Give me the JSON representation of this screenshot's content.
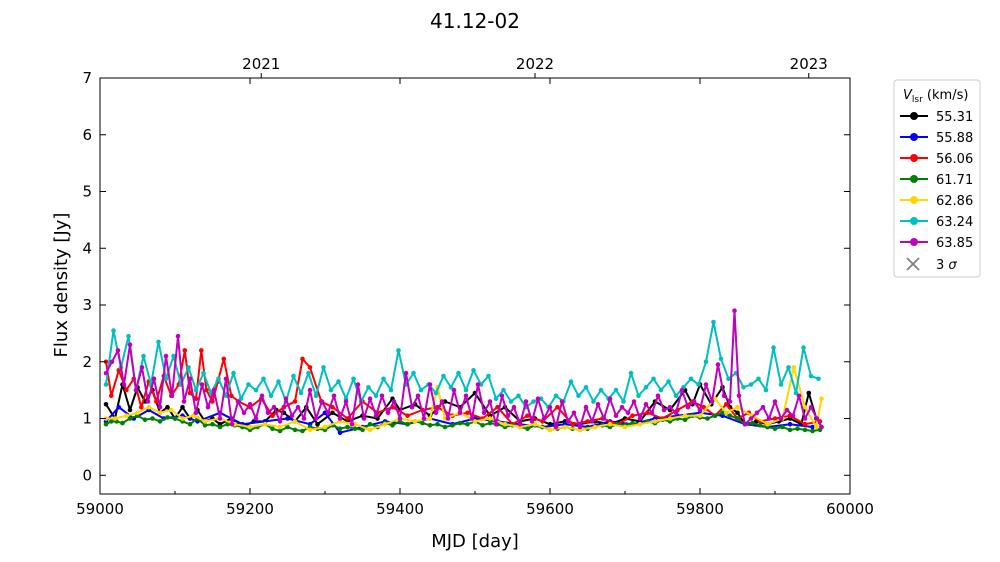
{
  "chart_data": {
    "type": "line",
    "title": "41.12-02",
    "xlabel": "MJD [day]",
    "ylabel": "Flux density [Jy]",
    "xlim": [
      59000,
      60000
    ],
    "ylim": [
      -0.33,
      7.0
    ],
    "x_ticks": [
      59000,
      59200,
      59400,
      59600,
      59800,
      60000
    ],
    "x_tick_labels": [
      "59000",
      "59200",
      "59400",
      "59600",
      "59800",
      "60000"
    ],
    "y_ticks": [
      0,
      1,
      2,
      3,
      4,
      5,
      6,
      7
    ],
    "y_tick_labels": [
      "0",
      "1",
      "2",
      "3",
      "4",
      "5",
      "6",
      "7"
    ],
    "top_axis": {
      "ticks": [
        59215,
        59580,
        59945
      ],
      "labels": [
        "2021",
        "2022",
        "2023"
      ]
    },
    "legend": {
      "title_main": "V",
      "title_sub": "lsr",
      "title_unit": " (km/s)",
      "placement": "outside-right",
      "entries": [
        {
          "label": "55.31",
          "color": "#000000"
        },
        {
          "label": "55.88",
          "color": "#0000ff"
        },
        {
          "label": "56.06",
          "color": "#ff0000"
        },
        {
          "label": "61.71",
          "color": "#008000"
        },
        {
          "label": "62.86",
          "color": "#ffd700"
        },
        {
          "label": "63.24",
          "color": "#00bfbf"
        },
        {
          "label": "63.85",
          "color": "#bf00bf"
        }
      ],
      "sigma_entry": {
        "label_main": "3 ",
        "label_sym": "σ",
        "color": "#808080"
      }
    },
    "series": [
      {
        "name": "55.31",
        "color": "#000000",
        "x": [
          59008,
          59020,
          59030,
          59040,
          59050,
          59060,
          59070,
          59080,
          59090,
          59100,
          59110,
          59120,
          59130,
          59140,
          59150,
          59160,
          59175,
          59190,
          59205,
          59220,
          59235,
          59245,
          59260,
          59275,
          59290,
          59310,
          59330,
          59350,
          59370,
          59390,
          59400,
          59420,
          59440,
          59460,
          59480,
          59500,
          59520,
          59540,
          59560,
          59580,
          59600,
          59620,
          59640,
          59660,
          59680,
          59700,
          59720,
          59740,
          59760,
          59780,
          59790,
          59800,
          59815,
          59830,
          59840,
          59850,
          59860,
          59875,
          59890,
          59905,
          59920,
          59935,
          59945,
          59955,
          59962
        ],
        "y": [
          1.25,
          1.0,
          1.6,
          1.15,
          1.55,
          1.3,
          1.5,
          1.1,
          1.2,
          1.0,
          1.2,
          1.0,
          1.15,
          0.95,
          1.0,
          0.9,
          1.0,
          0.85,
          0.95,
          0.95,
          1.15,
          1.1,
          0.95,
          1.2,
          0.9,
          1.1,
          0.95,
          1.05,
          1.0,
          1.35,
          1.15,
          1.25,
          1.05,
          1.3,
          1.2,
          1.45,
          1.05,
          1.2,
          0.95,
          1.0,
          0.9,
          0.95,
          0.9,
          0.95,
          0.9,
          1.0,
          0.95,
          1.3,
          1.15,
          1.5,
          1.25,
          1.6,
          1.25,
          1.55,
          1.2,
          1.1,
          0.9,
          0.95,
          0.9,
          0.95,
          1.0,
          0.9,
          1.45,
          1.0,
          0.85
        ]
      },
      {
        "name": "55.88",
        "color": "#0000ff",
        "x": [
          59008,
          59025,
          59045,
          59065,
          59085,
          59110,
          59130,
          59160,
          59190,
          59220,
          59250,
          59280,
          59300,
          59320,
          59350,
          59380,
          59410,
          59440,
          59470,
          59500,
          59530,
          59560,
          59590,
          59620,
          59650,
          59680,
          59710,
          59740,
          59770,
          59800,
          59830,
          59860,
          59890,
          59920,
          59950
        ],
        "y": [
          0.95,
          1.2,
          1.0,
          1.15,
          1.0,
          1.05,
          0.95,
          1.1,
          0.9,
          0.95,
          1.0,
          0.9,
          1.1,
          0.75,
          0.85,
          0.95,
          0.9,
          1.0,
          0.9,
          1.0,
          0.95,
          0.9,
          0.85,
          0.9,
          0.85,
          0.95,
          0.9,
          1.0,
          1.05,
          1.1,
          1.05,
          0.9,
          0.85,
          0.9,
          0.85
        ]
      },
      {
        "name": "56.06",
        "color": "#ff0000",
        "x": [
          59008,
          59015,
          59025,
          59035,
          59045,
          59055,
          59065,
          59075,
          59085,
          59095,
          59105,
          59113,
          59120,
          59128,
          59135,
          59142,
          59150,
          59157,
          59165,
          59175,
          59185,
          59200,
          59215,
          59230,
          59245,
          59260,
          59270,
          59280,
          59295,
          59310,
          59330,
          59350,
          59370,
          59390,
          59410,
          59430,
          59450,
          59470,
          59490,
          59510,
          59530,
          59550,
          59570,
          59590,
          59610,
          59630,
          59650,
          59670,
          59690,
          59710,
          59730,
          59750,
          59770,
          59790,
          59805,
          59820,
          59835,
          59850,
          59865,
          59880,
          59900,
          59920,
          59940,
          59960
        ],
        "y": [
          2.0,
          1.4,
          1.85,
          1.5,
          1.7,
          1.2,
          1.65,
          1.3,
          1.75,
          1.4,
          1.6,
          2.2,
          1.45,
          1.35,
          2.2,
          1.5,
          1.3,
          1.65,
          2.05,
          1.4,
          1.3,
          1.2,
          1.35,
          1.05,
          1.2,
          1.3,
          2.05,
          1.9,
          1.3,
          1.2,
          1.0,
          1.3,
          1.1,
          1.2,
          1.05,
          1.15,
          1.2,
          1.05,
          1.1,
          1.0,
          1.2,
          0.9,
          1.05,
          0.95,
          1.2,
          0.9,
          0.95,
          1.0,
          0.9,
          1.05,
          1.1,
          1.0,
          1.15,
          1.3,
          1.2,
          1.05,
          1.25,
          1.0,
          1.1,
          0.95,
          1.0,
          1.05,
          0.9,
          0.95
        ]
      },
      {
        "name": "61.71",
        "color": "#008000",
        "x": [
          59008,
          59015,
          59022,
          59030,
          59040,
          59050,
          59060,
          59070,
          59080,
          59090,
          59100,
          59110,
          59120,
          59130,
          59140,
          59150,
          59160,
          59170,
          59180,
          59190,
          59200,
          59210,
          59220,
          59230,
          59240,
          59250,
          59260,
          59270,
          59280,
          59290,
          59300,
          59310,
          59320,
          59330,
          59340,
          59350,
          59360,
          59370,
          59380,
          59390,
          59400,
          59410,
          59420,
          59430,
          59440,
          59450,
          59460,
          59470,
          59480,
          59490,
          59500,
          59510,
          59520,
          59530,
          59540,
          59550,
          59560,
          59570,
          59580,
          59590,
          59600,
          59610,
          59620,
          59630,
          59640,
          59650,
          59660,
          59670,
          59680,
          59690,
          59700,
          59710,
          59720,
          59730,
          59740,
          59750,
          59760,
          59770,
          59780,
          59790,
          59800,
          59810,
          59820,
          59830,
          59840,
          59850,
          59860,
          59870,
          59880,
          59890,
          59900,
          59910,
          59920,
          59930,
          59940,
          59950,
          59960
        ],
        "y": [
          0.9,
          0.95,
          0.95,
          0.92,
          1.0,
          1.05,
          0.98,
          1.0,
          0.95,
          1.02,
          1.0,
          0.95,
          0.9,
          1.0,
          0.88,
          0.9,
          0.85,
          0.9,
          0.88,
          0.85,
          0.8,
          0.85,
          0.9,
          0.82,
          0.78,
          0.85,
          0.8,
          0.78,
          0.85,
          0.82,
          0.8,
          0.88,
          0.82,
          0.85,
          0.82,
          0.8,
          0.9,
          0.85,
          0.92,
          0.88,
          0.95,
          0.9,
          0.95,
          0.92,
          0.88,
          0.9,
          0.85,
          0.88,
          0.92,
          0.9,
          0.95,
          0.88,
          0.92,
          0.9,
          0.85,
          0.88,
          0.85,
          0.82,
          0.88,
          0.85,
          0.8,
          0.82,
          0.85,
          0.82,
          0.8,
          0.82,
          0.85,
          0.88,
          0.85,
          0.9,
          0.88,
          0.92,
          0.9,
          0.95,
          0.92,
          0.98,
          0.95,
          1.0,
          0.98,
          1.05,
          1.02,
          1.0,
          1.05,
          1.1,
          1.05,
          1.0,
          0.9,
          0.92,
          0.88,
          0.85,
          0.82,
          0.85,
          0.8,
          0.82,
          0.8,
          0.78,
          0.8
        ]
      },
      {
        "name": "62.86",
        "color": "#ffd700",
        "x": [
          59008,
          59020,
          59035,
          59050,
          59065,
          59080,
          59095,
          59110,
          59125,
          59140,
          59160,
          59180,
          59200,
          59220,
          59240,
          59260,
          59280,
          59300,
          59320,
          59340,
          59360,
          59380,
          59400,
          59420,
          59440,
          59450,
          59460,
          59480,
          59500,
          59520,
          59540,
          59560,
          59580,
          59600,
          59620,
          59640,
          59660,
          59680,
          59700,
          59720,
          59740,
          59760,
          59780,
          59800,
          59820,
          59835,
          59850,
          59870,
          59890,
          59910,
          59925,
          59940,
          59955,
          59962
        ],
        "y": [
          1.0,
          1.0,
          1.05,
          1.1,
          1.2,
          1.1,
          1.15,
          1.0,
          1.05,
          0.95,
          1.0,
          0.9,
          0.85,
          0.9,
          0.85,
          0.95,
          0.8,
          0.85,
          0.95,
          0.9,
          0.8,
          0.9,
          1.0,
          0.95,
          1.0,
          1.55,
          1.0,
          1.1,
          0.95,
          1.0,
          0.9,
          0.85,
          0.9,
          0.8,
          0.85,
          0.8,
          0.85,
          0.9,
          0.85,
          0.9,
          0.95,
          1.0,
          1.05,
          1.05,
          1.35,
          1.1,
          1.2,
          1.05,
          0.9,
          1.0,
          1.9,
          1.2,
          0.85,
          1.35
        ]
      },
      {
        "name": "63.24",
        "color": "#00bfbf",
        "x": [
          59008,
          59018,
          59028,
          59038,
          59048,
          59058,
          59068,
          59078,
          59088,
          59098,
          59108,
          59118,
          59128,
          59138,
          59148,
          59158,
          59168,
          59178,
          59188,
          59198,
          59208,
          59218,
          59228,
          59238,
          59248,
          59258,
          59268,
          59278,
          59288,
          59298,
          59308,
          59318,
          59328,
          59338,
          59348,
          59358,
          59368,
          59378,
          59388,
          59398,
          59408,
          59418,
          59428,
          59438,
          59448,
          59458,
          59468,
          59478,
          59488,
          59498,
          59508,
          59518,
          59528,
          59538,
          59548,
          59558,
          59568,
          59578,
          59588,
          59598,
          59608,
          59618,
          59628,
          59638,
          59648,
          59658,
          59668,
          59678,
          59688,
          59698,
          59708,
          59718,
          59728,
          59738,
          59748,
          59758,
          59768,
          59778,
          59788,
          59798,
          59808,
          59818,
          59828,
          59838,
          59848,
          59858,
          59868,
          59878,
          59888,
          59898,
          59908,
          59918,
          59928,
          59938,
          59948,
          59958
        ],
        "y": [
          1.6,
          2.55,
          1.9,
          2.45,
          1.5,
          2.1,
          1.6,
          2.35,
          1.7,
          2.1,
          1.6,
          1.9,
          1.5,
          1.8,
          1.45,
          1.7,
          1.4,
          1.8,
          1.35,
          1.6,
          1.5,
          1.7,
          1.4,
          1.65,
          1.3,
          1.75,
          1.45,
          1.8,
          1.4,
          1.9,
          1.5,
          1.65,
          1.35,
          1.7,
          1.3,
          1.55,
          1.4,
          1.7,
          1.5,
          2.2,
          1.6,
          1.8,
          1.5,
          1.6,
          1.45,
          1.75,
          1.55,
          1.8,
          1.5,
          1.85,
          1.6,
          1.75,
          1.35,
          1.5,
          1.3,
          1.4,
          1.2,
          1.3,
          1.35,
          1.2,
          1.4,
          1.3,
          1.65,
          1.4,
          1.55,
          1.3,
          1.5,
          1.35,
          1.5,
          1.3,
          1.8,
          1.4,
          1.55,
          1.7,
          1.5,
          1.65,
          1.4,
          1.55,
          1.7,
          1.6,
          2.0,
          2.7,
          2.05,
          1.7,
          1.8,
          1.55,
          1.6,
          1.7,
          1.5,
          2.25,
          1.6,
          1.9,
          1.45,
          2.25,
          1.75,
          1.7
        ]
      },
      {
        "name": "63.85",
        "color": "#bf00bf",
        "x": [
          59008,
          59016,
          59024,
          59032,
          59040,
          59048,
          59056,
          59064,
          59072,
          59080,
          59088,
          59096,
          59104,
          59112,
          59120,
          59128,
          59136,
          59144,
          59152,
          59160,
          59168,
          59176,
          59184,
          59192,
          59200,
          59208,
          59216,
          59224,
          59232,
          59240,
          59248,
          59256,
          59264,
          59272,
          59280,
          59288,
          59296,
          59304,
          59312,
          59320,
          59328,
          59336,
          59344,
          59352,
          59360,
          59368,
          59376,
          59384,
          59392,
          59400,
          59408,
          59416,
          59424,
          59432,
          59440,
          59448,
          59456,
          59464,
          59472,
          59480,
          59488,
          59496,
          59504,
          59512,
          59520,
          59528,
          59536,
          59544,
          59552,
          59560,
          59568,
          59576,
          59584,
          59592,
          59600,
          59608,
          59616,
          59624,
          59632,
          59640,
          59648,
          59656,
          59664,
          59672,
          59680,
          59688,
          59696,
          59704,
          59712,
          59720,
          59728,
          59736,
          59744,
          59752,
          59760,
          59768,
          59776,
          59784,
          59792,
          59800,
          59808,
          59816,
          59824,
          59832,
          59840,
          59846,
          59852,
          59860,
          59868,
          59876,
          59884,
          59892,
          59900,
          59908,
          59916,
          59924,
          59932,
          59940,
          59948,
          59956,
          59962
        ],
        "y": [
          1.8,
          2.0,
          2.2,
          1.6,
          2.3,
          1.5,
          1.9,
          1.3,
          1.7,
          1.2,
          2.1,
          1.4,
          2.45,
          1.3,
          1.7,
          1.1,
          1.6,
          1.2,
          1.5,
          1.0,
          1.7,
          0.9,
          1.3,
          1.1,
          1.25,
          1.0,
          1.4,
          1.1,
          1.2,
          0.95,
          1.35,
          1.05,
          1.2,
          1.0,
          1.5,
          1.0,
          1.3,
          1.1,
          1.4,
          1.0,
          1.3,
          0.9,
          1.6,
          1.0,
          1.35,
          1.05,
          1.4,
          1.1,
          1.3,
          1.0,
          1.8,
          1.2,
          1.4,
          1.0,
          1.6,
          1.1,
          1.3,
          1.0,
          1.5,
          1.1,
          1.4,
          1.0,
          1.6,
          1.1,
          1.3,
          0.9,
          1.4,
          1.05,
          1.2,
          0.9,
          1.3,
          0.95,
          1.35,
          1.0,
          1.2,
          0.85,
          1.3,
          0.95,
          1.1,
          0.85,
          1.2,
          0.95,
          1.25,
          1.0,
          1.35,
          1.05,
          1.2,
          1.1,
          1.3,
          1.0,
          1.25,
          1.1,
          1.4,
          1.15,
          1.2,
          1.1,
          1.5,
          1.2,
          1.3,
          1.15,
          1.6,
          1.3,
          1.95,
          1.4,
          1.3,
          2.9,
          1.4,
          0.9,
          1.0,
          1.1,
          1.2,
          1.0,
          1.3,
          1.0,
          1.15,
          1.05,
          1.4,
          1.0,
          1.2,
          1.0,
          0.85
        ]
      }
    ]
  }
}
